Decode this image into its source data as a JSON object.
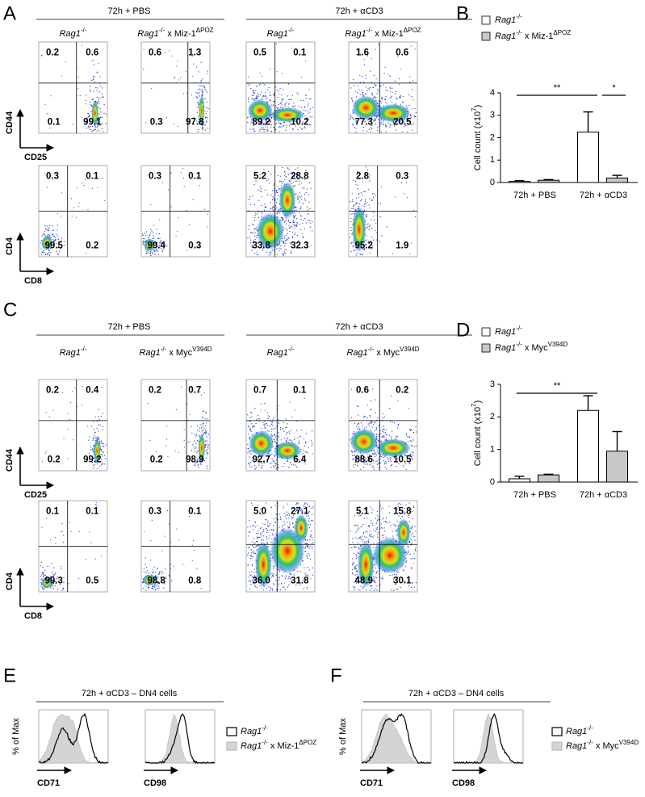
{
  "panels": {
    "A": {
      "letter": "A",
      "groups": [
        {
          "title": "72h + PBS"
        },
        {
          "title": "72h + αCD3"
        }
      ],
      "columns": [
        [
          {
            "t": "Rag1",
            "s": "i"
          },
          {
            "t": "-/-",
            "s": "sup"
          }
        ],
        [
          {
            "t": "Rag1",
            "s": "i"
          },
          {
            "t": "-/-",
            "s": "sup"
          },
          {
            "t": " x Miz-1",
            "s": "n"
          },
          {
            "t": "ΔPOZ",
            "s": "sup"
          }
        ],
        [
          {
            "t": "Rag1",
            "s": "i"
          },
          {
            "t": "-/-",
            "s": "sup"
          }
        ],
        [
          {
            "t": "Rag1",
            "s": "i"
          },
          {
            "t": "-/-",
            "s": "sup"
          },
          {
            "t": " x Miz-1",
            "s": "n"
          },
          {
            "t": "ΔPOZ",
            "s": "sup"
          }
        ]
      ],
      "rows": [
        {
          "y_label": "CD44",
          "x_label": "CD25",
          "plots": [
            [
              "0.2",
              "0.6",
              "0.1",
              "99.1"
            ],
            [
              "0.6",
              "1.3",
              "0.3",
              "97.8"
            ],
            [
              "0.5",
              "0.1",
              "89.2",
              "10.2"
            ],
            [
              "1.6",
              "0.6",
              "77.3",
              "20.5"
            ]
          ]
        },
        {
          "y_label": "CD4",
          "x_label": "CD8",
          "plots": [
            [
              "0.3",
              "0.1",
              "99.5",
              "0.2"
            ],
            [
              "0.3",
              "0.1",
              "99.4",
              "0.3"
            ],
            [
              "5.2",
              "28.8",
              "33.8",
              "32.3"
            ],
            [
              "2.8",
              "0.3",
              "95.2",
              "1.9"
            ]
          ]
        }
      ]
    },
    "C": {
      "letter": "C",
      "groups": [
        {
          "title": "72h + PBS"
        },
        {
          "title": "72h + αCD3"
        }
      ],
      "columns": [
        [
          {
            "t": "Rag1",
            "s": "i"
          },
          {
            "t": "-/-",
            "s": "sup"
          }
        ],
        [
          {
            "t": "Rag1",
            "s": "i"
          },
          {
            "t": "-/-",
            "s": "sup"
          },
          {
            "t": " x Myc",
            "s": "n"
          },
          {
            "t": "V394D",
            "s": "sup"
          }
        ],
        [
          {
            "t": "Rag1",
            "s": "i"
          },
          {
            "t": "-/-",
            "s": "sup"
          }
        ],
        [
          {
            "t": "Rag1",
            "s": "i"
          },
          {
            "t": "-/-",
            "s": "sup"
          },
          {
            "t": " x Myc",
            "s": "n"
          },
          {
            "t": "V394D",
            "s": "sup"
          }
        ]
      ],
      "rows": [
        {
          "y_label": "CD44",
          "x_label": "CD25",
          "plots": [
            [
              "0.2",
              "0.4",
              "0.2",
              "99.2"
            ],
            [
              "0.2",
              "0.7",
              "0.2",
              "98.9"
            ],
            [
              "0.7",
              "0.1",
              "92.7",
              "6.4"
            ],
            [
              "0.6",
              "0.2",
              "88.6",
              "10.5"
            ]
          ]
        },
        {
          "y_label": "CD4",
          "x_label": "CD8",
          "plots": [
            [
              "0.1",
              "0.1",
              "99.3",
              "0.5"
            ],
            [
              "0.3",
              "0.1",
              "98.8",
              "0.8"
            ],
            [
              "5.0",
              "27.1",
              "36.0",
              "31.8"
            ],
            [
              "5.1",
              "15.8",
              "48.9",
              "30.1"
            ]
          ]
        }
      ]
    },
    "E": {
      "letter": "E",
      "title": "72h + αCD3 – DN4 cells",
      "y_label": "% of Max",
      "x_labels": [
        "CD71",
        "CD98"
      ],
      "legend": [
        [
          {
            "t": "Rag1",
            "s": "i"
          },
          {
            "t": "-/-",
            "s": "sup"
          }
        ],
        [
          {
            "t": "Rag1",
            "s": "i"
          },
          {
            "t": "-/-",
            "s": "sup"
          },
          {
            "t": " x Miz-1",
            "s": "n"
          },
          {
            "t": "ΔPOZ",
            "s": "sup"
          }
        ]
      ]
    },
    "F": {
      "letter": "F",
      "title": "72h + αCD3 – DN4 cells",
      "y_label": "% of Max",
      "x_labels": [
        "CD71",
        "CD98"
      ],
      "legend": [
        [
          {
            "t": "Rag1",
            "s": "i"
          },
          {
            "t": "-/-",
            "s": "sup"
          }
        ],
        [
          {
            "t": "Rag1",
            "s": "i"
          },
          {
            "t": "-/-",
            "s": "sup"
          },
          {
            "t": " x Myc",
            "s": "n"
          },
          {
            "t": "V394D",
            "s": "sup"
          }
        ]
      ]
    }
  },
  "chart_data": [
    {
      "letter": "B",
      "type": "bar",
      "y_label": [
        {
          "t": "Cell count  (x10",
          "s": "n"
        },
        {
          "t": "7",
          "s": "sup"
        },
        {
          "t": ")",
          "s": "n"
        }
      ],
      "categories": [
        "72h + PBS",
        "72h + αCD3"
      ],
      "series": [
        {
          "name": [
            {
              "t": "Rag1",
              "s": "i"
            },
            {
              "t": "-/-",
              "s": "sup"
            }
          ],
          "color": "#ffffff",
          "values": [
            0.05,
            2.25
          ],
          "errors": [
            0.03,
            0.9
          ]
        },
        {
          "name": [
            {
              "t": "Rag1",
              "s": "i"
            },
            {
              "t": "-/-",
              "s": "sup"
            },
            {
              "t": " x Miz-1",
              "s": "n"
            },
            {
              "t": "ΔPOZ",
              "s": "sup"
            }
          ],
          "color": "#c8c8c8",
          "values": [
            0.1,
            0.2
          ],
          "errors": [
            0.03,
            0.12
          ]
        }
      ],
      "ylim": [
        0,
        4
      ],
      "yticks": [
        0,
        1,
        2,
        3,
        4
      ],
      "annotations": [
        {
          "text": "**"
        },
        {
          "text": "*"
        }
      ]
    },
    {
      "letter": "D",
      "type": "bar",
      "y_label": [
        {
          "t": "Cell count  (x10",
          "s": "n"
        },
        {
          "t": "7",
          "s": "sup"
        },
        {
          "t": ")",
          "s": "n"
        }
      ],
      "categories": [
        "72h + PBS",
        "72h + αCD3"
      ],
      "series": [
        {
          "name": [
            {
              "t": "Rag1",
              "s": "i"
            },
            {
              "t": "-/-",
              "s": "sup"
            }
          ],
          "color": "#ffffff",
          "values": [
            0.1,
            2.2
          ],
          "errors": [
            0.08,
            0.45
          ]
        },
        {
          "name": [
            {
              "t": "Rag1",
              "s": "i"
            },
            {
              "t": "-/-",
              "s": "sup"
            },
            {
              "t": " x Myc",
              "s": "n"
            },
            {
              "t": "V394D",
              "s": "sup"
            }
          ],
          "color": "#c8c8c8",
          "values": [
            0.22,
            0.95
          ],
          "errors": [
            0.02,
            0.6
          ]
        }
      ],
      "ylim": [
        0,
        3
      ],
      "yticks": [
        0,
        1,
        2,
        3
      ],
      "annotations": [
        {
          "text": "**"
        }
      ]
    }
  ]
}
